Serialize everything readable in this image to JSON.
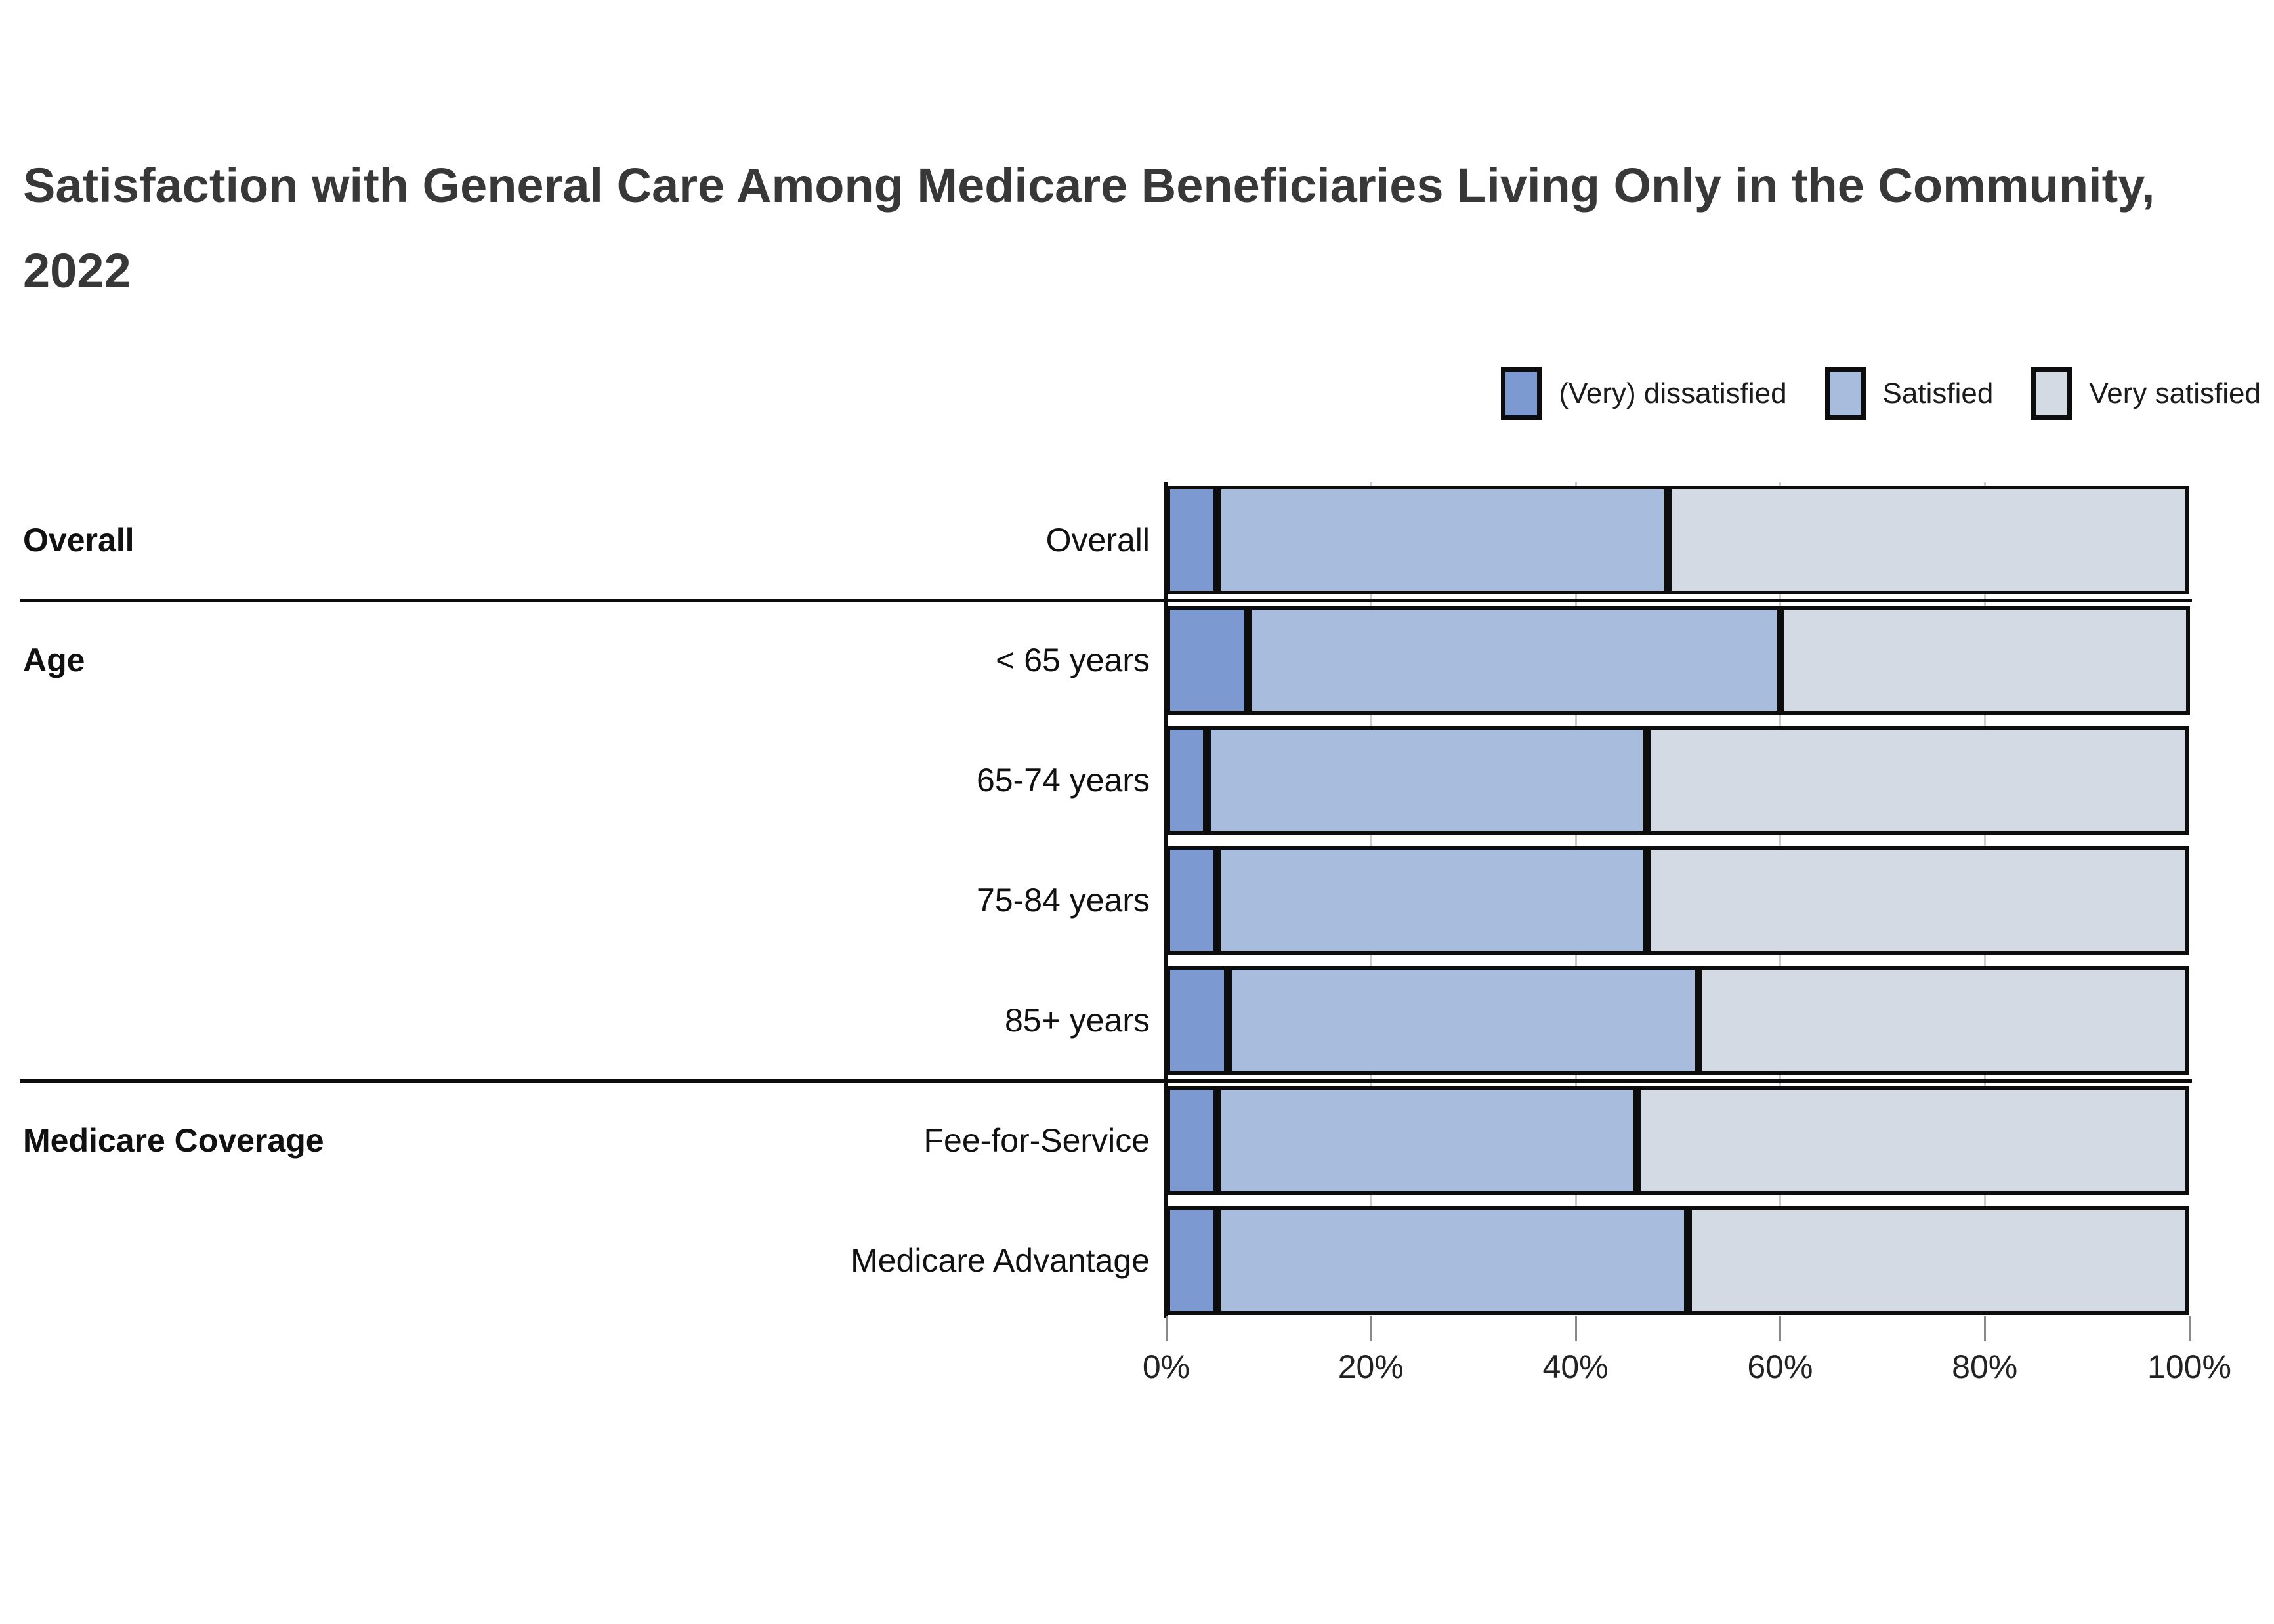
{
  "title": "Satisfaction with General Care Among Medicare Beneficiaries Living Only in the Community, 2022",
  "legend": [
    {
      "label": "(Very) dissatisfied",
      "color": "#7C99D1"
    },
    {
      "label": "Satisfied",
      "color": "#A8BCDE"
    },
    {
      "label": "Very satisfied",
      "color": "#D3DAE4"
    }
  ],
  "colors": {
    "dissatisfied": "#7C99D1",
    "satisfied": "#A8BCDE",
    "very_satisfied": "#D3DAE4",
    "bar_border": "#0d0d0d",
    "gridline": "#cccccc",
    "title_text": "#383838"
  },
  "chart_data": {
    "type": "bar",
    "stacked": true,
    "orientation": "horizontal",
    "title": "Satisfaction with General Care Among Medicare Beneficiaries Living Only in the Community, 2022",
    "categories": [
      "Overall",
      "< 65 years",
      "65-74 years",
      "75-84 years",
      "85+ years",
      "Fee-for-Service",
      "Medicare Advantage"
    ],
    "groups": [
      {
        "label": "Overall",
        "first_row": 0,
        "last_row": 0
      },
      {
        "label": "Age",
        "first_row": 1,
        "last_row": 4
      },
      {
        "label": "Medicare Coverage",
        "first_row": 5,
        "last_row": 6
      }
    ],
    "series": [
      {
        "name": "(Very) dissatisfied",
        "color": "#7C99D1",
        "values": [
          5,
          8,
          4,
          5,
          6,
          5,
          5
        ]
      },
      {
        "name": "Satisfied",
        "color": "#A8BCDE",
        "values": [
          44,
          52,
          43,
          42,
          46,
          41,
          46
        ]
      },
      {
        "name": "Very satisfied",
        "color": "#D3DAE4",
        "values": [
          51,
          40,
          53,
          53,
          48,
          54,
          49
        ]
      }
    ],
    "xlabel": "",
    "ylabel": "",
    "xlim": [
      0,
      100
    ],
    "x_ticks": [
      "0%",
      "20%",
      "40%",
      "60%",
      "80%",
      "100%"
    ],
    "x_tick_values": [
      0,
      20,
      40,
      60,
      80,
      100
    ],
    "units": "%",
    "grid": true,
    "legend_position": "top-right"
  }
}
